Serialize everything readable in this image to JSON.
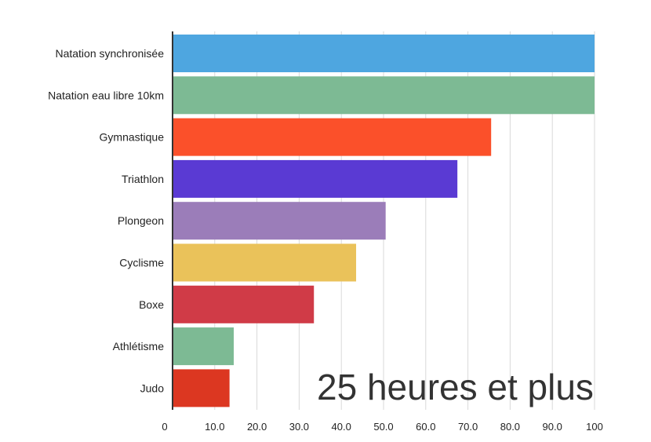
{
  "chart_data": {
    "type": "bar",
    "orientation": "horizontal",
    "categories": [
      "Natation synchronisée",
      "Natation eau libre 10km",
      "Gymnastique",
      "Triathlon",
      "Plongeon",
      "Cyclisme",
      "Boxe",
      "Athlétisme",
      "Judo"
    ],
    "values": [
      100,
      100,
      75.5,
      67.5,
      50.5,
      43.5,
      33.5,
      14.5,
      13.5
    ],
    "colors": [
      "#4ea6e0",
      "#7dba94",
      "#fb502a",
      "#5a3ad3",
      "#9b7db9",
      "#eac25a",
      "#d03b47",
      "#7dba94",
      "#dc3721"
    ],
    "xlim": [
      0,
      100
    ],
    "xticks": [
      "0",
      "10.0",
      "20.0",
      "30.0",
      "40.0",
      "50.0",
      "60.0",
      "70.0",
      "80.0",
      "90.0",
      "100"
    ],
    "grid": true,
    "annotation": "25 heures et plus"
  }
}
